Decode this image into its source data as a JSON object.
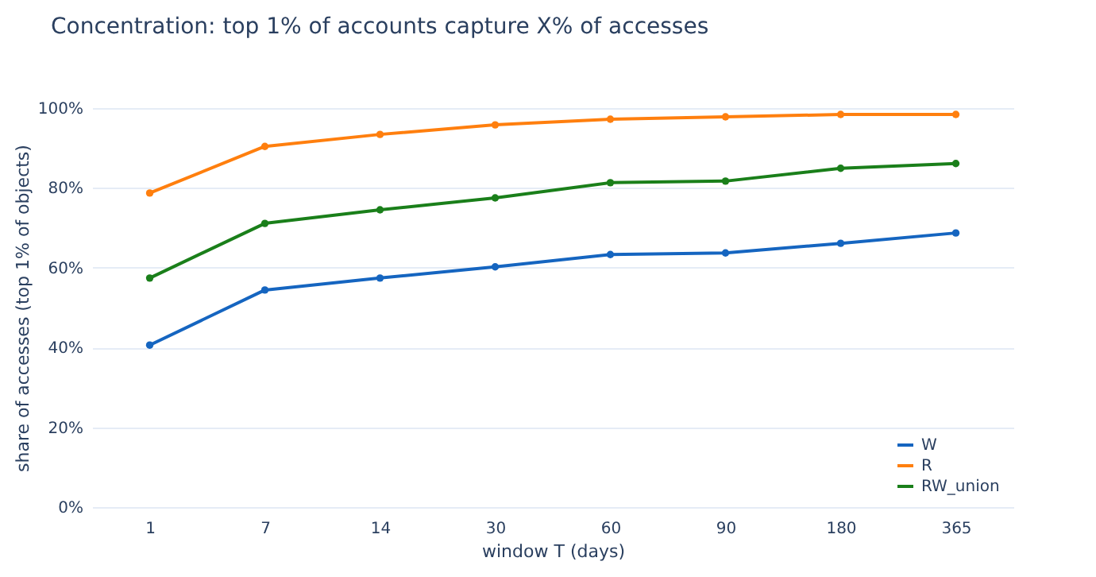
{
  "chart_data": {
    "type": "line",
    "title": "Concentration: top 1% of accounts capture X% of accesses",
    "xlabel": "window T (days)",
    "ylabel": "share of accesses (top 1% of objects)",
    "categories": [
      "1",
      "7",
      "14",
      "30",
      "60",
      "90",
      "180",
      "365"
    ],
    "series": [
      {
        "name": "W",
        "color": "#1565c0",
        "values": [
          40.6,
          54.4,
          57.4,
          60.2,
          63.3,
          63.7,
          66.1,
          68.7
        ]
      },
      {
        "name": "R",
        "color": "#ff7f0e",
        "values": [
          78.7,
          90.4,
          93.4,
          95.8,
          97.2,
          97.8,
          98.4,
          98.4
        ]
      },
      {
        "name": "RW_union",
        "color": "#1a7f1a",
        "values": [
          57.4,
          71.1,
          74.5,
          77.5,
          81.3,
          81.7,
          84.9,
          86.1
        ]
      }
    ],
    "ylim": [
      0,
      100
    ],
    "yticks": [
      {
        "value": 0,
        "label": "0%"
      },
      {
        "value": 20,
        "label": "20%"
      },
      {
        "value": 40,
        "label": "40%"
      },
      {
        "value": 60,
        "label": "60%"
      },
      {
        "value": 80,
        "label": "80%"
      },
      {
        "value": 100,
        "label": "100%"
      }
    ],
    "grid": "y",
    "legend": "bottom right",
    "marker": "circle",
    "line_style": "solid"
  }
}
